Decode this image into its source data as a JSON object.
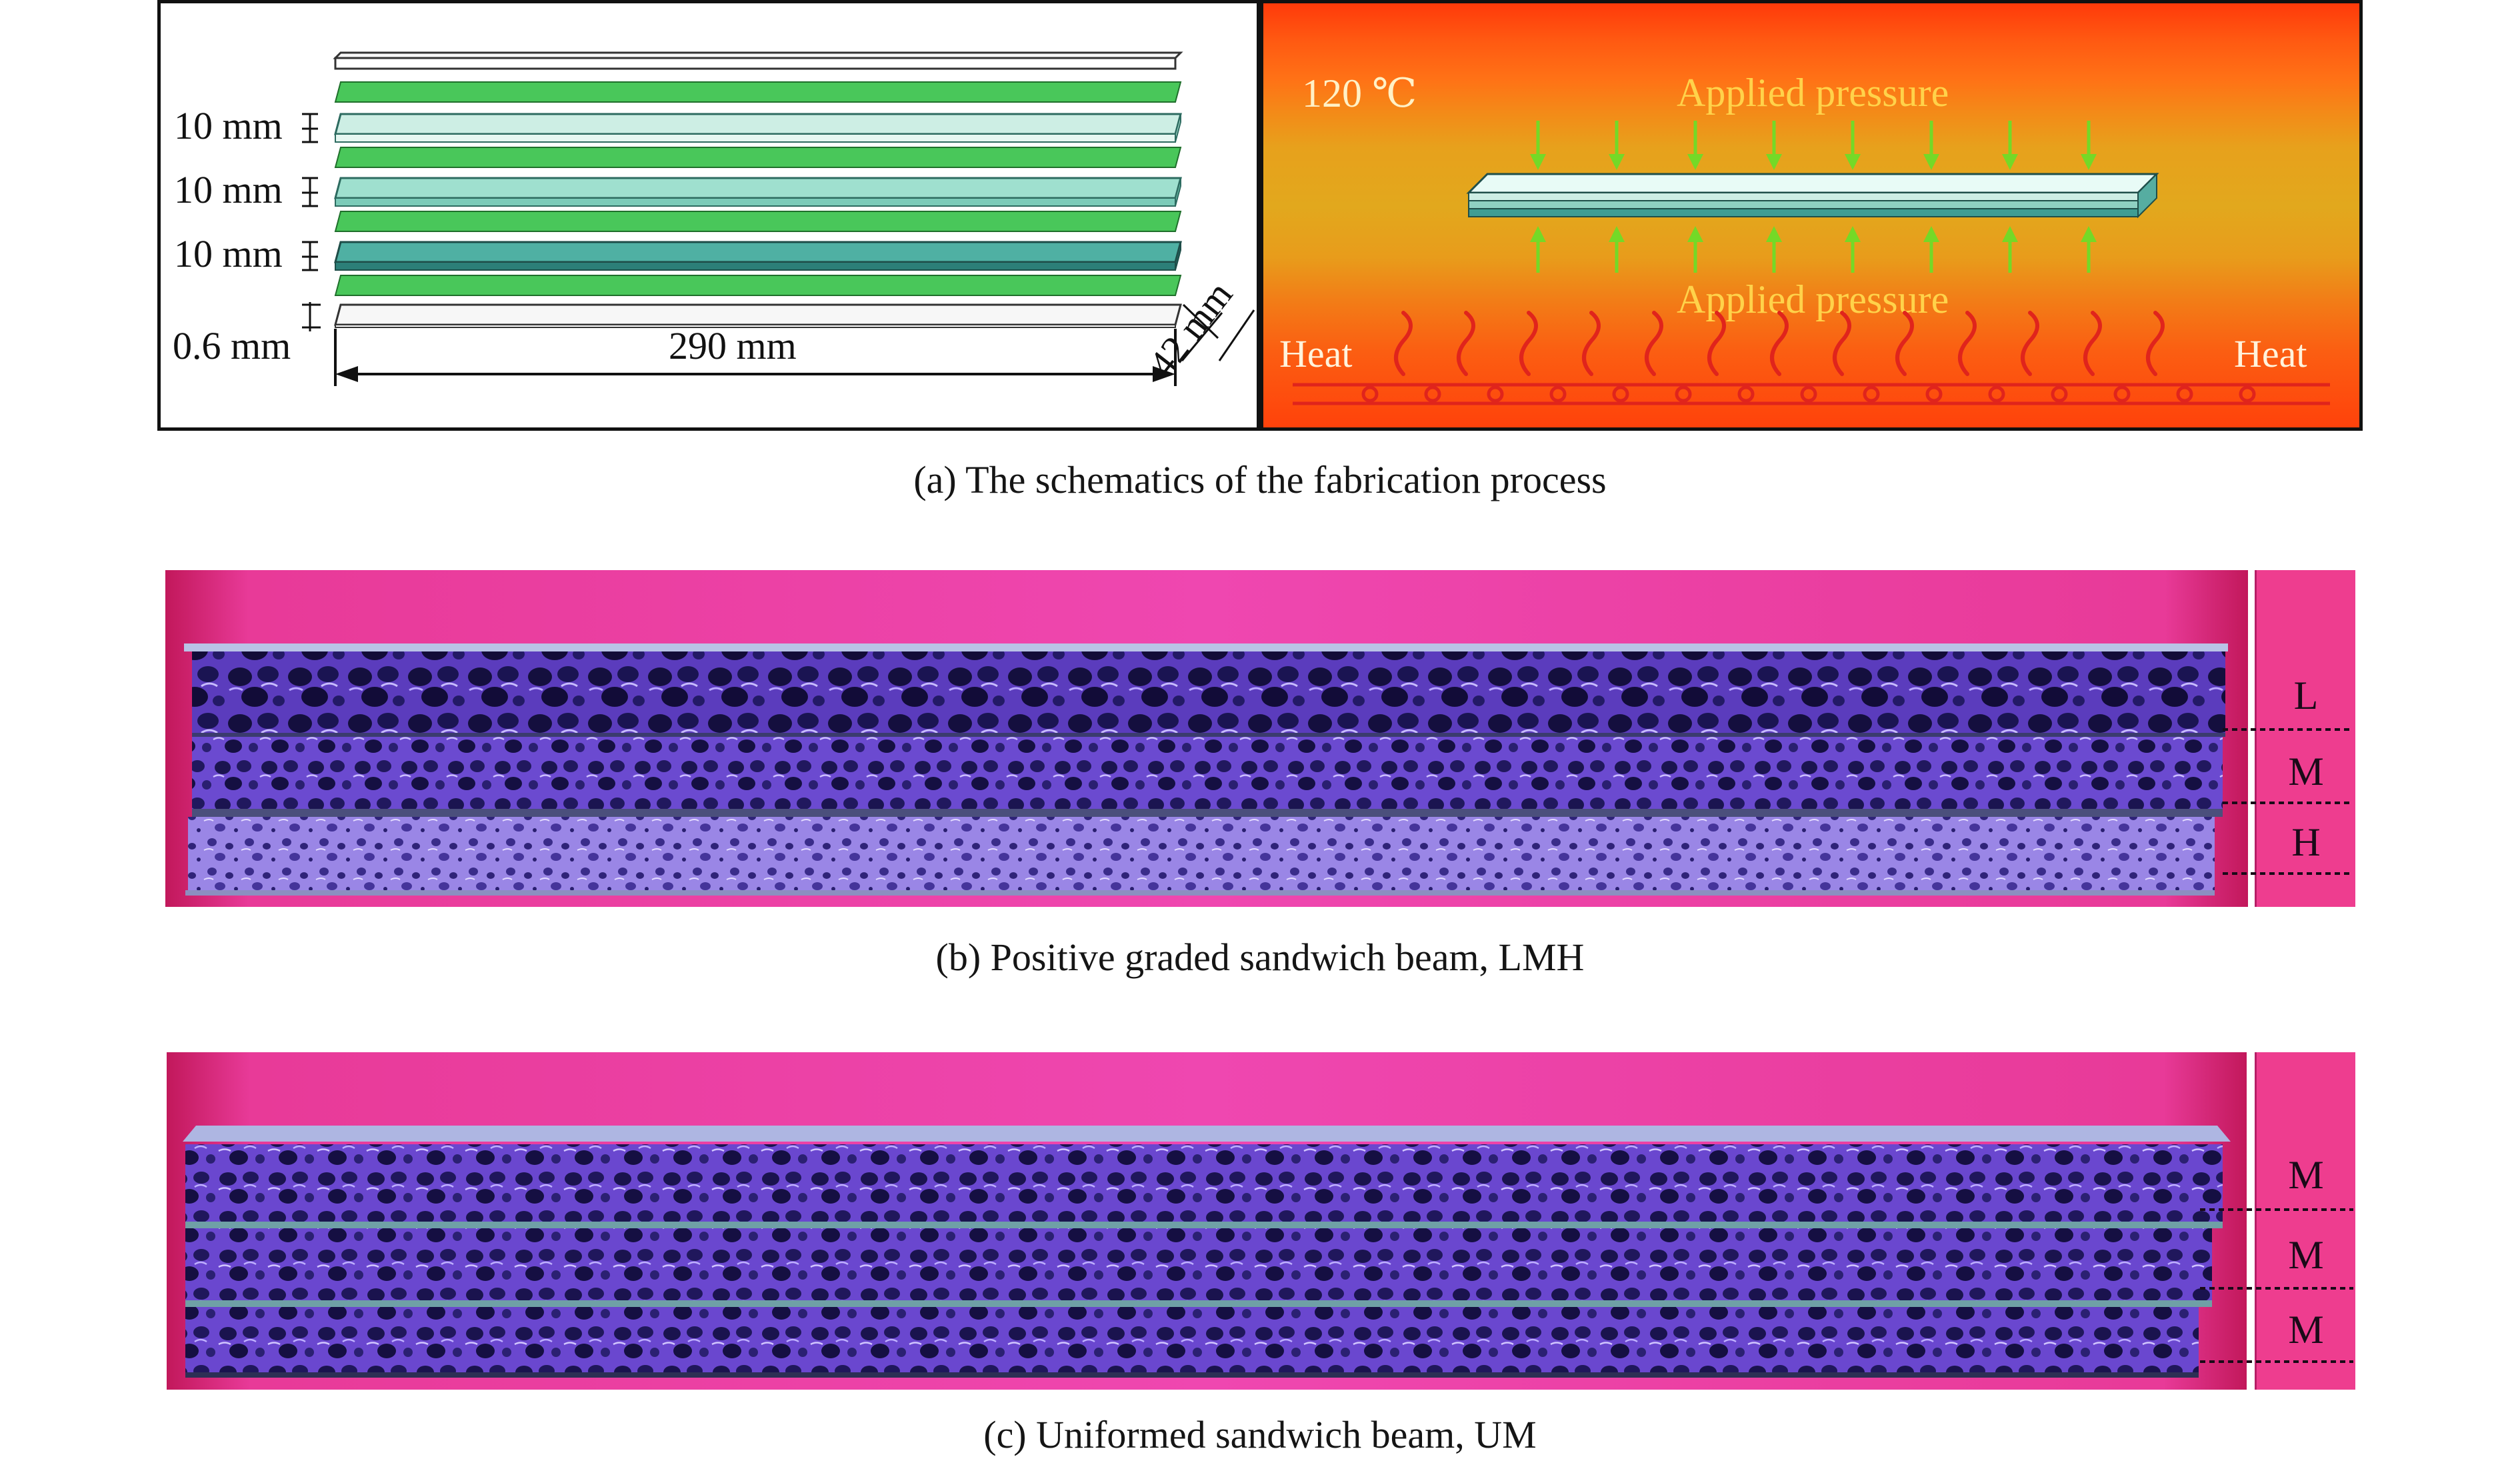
{
  "panel_a": {
    "left": {
      "dims": {
        "core1": "10 mm",
        "core2": "10 mm",
        "core3": "10 mm",
        "face": "0.6 mm",
        "length": "290 mm",
        "width": "42 mm"
      }
    },
    "right": {
      "temperature": "120 ℃",
      "pressure_top": "Applied pressure",
      "pressure_bottom": "Applied pressure",
      "heat_left": "Heat",
      "heat_right": "Heat"
    },
    "caption": "(a) The schematics of the fabrication process"
  },
  "panel_b": {
    "layers": [
      "L",
      "M",
      "H"
    ],
    "caption": "(b) Positive graded sandwich beam, LMH"
  },
  "panel_c": {
    "layers": [
      "M",
      "M",
      "M"
    ],
    "caption": "(c) Uniformed sandwich beam, UM"
  },
  "colors": {
    "adhesive_green": "#3fbf4f",
    "core_light": "#bfe9de",
    "core_mid": "#7fd3c1",
    "core_dark": "#2f8f86",
    "pressure_arrow": "#7ddc2a",
    "label_text": "#ffd24a",
    "photo_pink": "#ef47b0",
    "foam_purple": "#6a3fc9"
  }
}
